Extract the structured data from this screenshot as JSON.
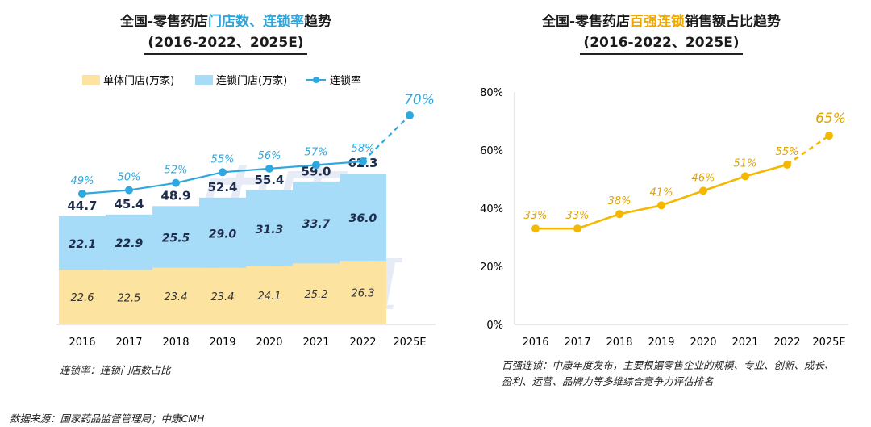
{
  "left": {
    "title_part1": "全国-零售药店",
    "title_part2": "门店数、连锁率",
    "title_part3": "趋势",
    "title_line2": "(2016-2022、2025E)",
    "note": "连锁率：连锁门店数占比",
    "watermark": "中康CMH",
    "chart_data": {
      "type": "bar",
      "categories": [
        "2016",
        "2017",
        "2018",
        "2019",
        "2020",
        "2021",
        "2022",
        "2025E"
      ],
      "series": [
        {
          "name": "单体门店(万家)",
          "type": "bar",
          "color": "#fde3a0",
          "values": [
            22.6,
            22.5,
            23.4,
            23.4,
            24.1,
            25.2,
            26.3,
            null
          ],
          "labels": [
            "22.6",
            "22.5",
            "23.4",
            "23.4",
            "24.1",
            "25.2",
            "26.3",
            ""
          ]
        },
        {
          "name": "连锁门店(万家)",
          "type": "bar",
          "color": "#a6dcf7",
          "values": [
            22.1,
            22.9,
            25.5,
            29.0,
            31.3,
            33.7,
            36.0,
            null
          ],
          "labels": [
            "22.1",
            "22.9",
            "25.5",
            "29.0",
            "31.3",
            "33.7",
            "36.0",
            ""
          ]
        },
        {
          "name": "连锁率",
          "type": "line",
          "color": "#2ea8df",
          "values": [
            49,
            50,
            52,
            55,
            56,
            57,
            58,
            70
          ],
          "labels": [
            "49%",
            "50%",
            "52%",
            "55%",
            "56%",
            "57%",
            "58%",
            "70%"
          ]
        }
      ],
      "totals": [
        44.7,
        45.4,
        48.9,
        52.4,
        55.4,
        59.0,
        62.3,
        null
      ],
      "total_labels": [
        "44.7",
        "45.4",
        "48.9",
        "52.4",
        "55.4",
        "59.0",
        "62.3",
        ""
      ],
      "projected_index": 7
    }
  },
  "right": {
    "title_part1": "全国-零售药店",
    "title_part2": "百强连锁",
    "title_part3": "销售额占比趋势",
    "title_line2": "(2016-2022、2025E)",
    "note_line1": "百强连锁：中康年度发布，主要根据零售企业的规模、专业、创新、成长、",
    "note_line2": "盈利、运营、品牌力等多维综合竞争力评估排名",
    "chart_data": {
      "type": "line",
      "categories": [
        "2016",
        "2017",
        "2018",
        "2019",
        "2020",
        "2021",
        "2022",
        "2025E"
      ],
      "series": [
        {
          "color": "#f5b800",
          "values": [
            33,
            33,
            38,
            41,
            46,
            51,
            55,
            65
          ],
          "labels": [
            "33%",
            "33%",
            "38%",
            "41%",
            "46%",
            "51%",
            "55%",
            "65%"
          ]
        }
      ],
      "yticks": [
        "0%",
        "20%",
        "40%",
        "60%",
        "80%"
      ],
      "ylim": [
        0,
        80
      ],
      "projected_index": 7
    }
  },
  "footer": {
    "source": "数据来源：国家药品监督管理局；中康CMH"
  }
}
